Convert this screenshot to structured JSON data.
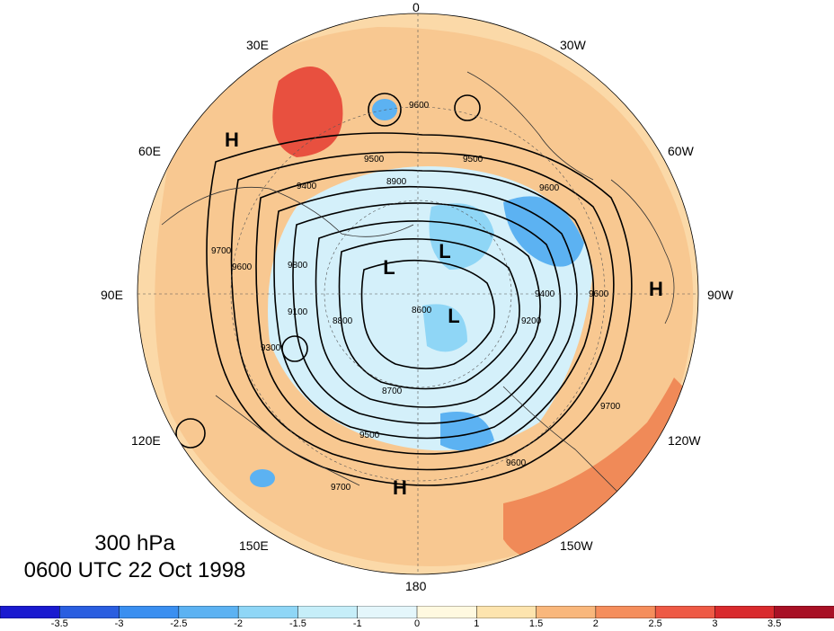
{
  "title": {
    "level": "300 hPa",
    "time": "0600 UTC 22 Oct 1998"
  },
  "longitude_labels": {
    "lon_0": "0",
    "lon_30w": "30W",
    "lon_60w": "60W",
    "lon_90w": "90W",
    "lon_120w": "120W",
    "lon_150w": "150W",
    "lon_180": "180",
    "lon_150e": "150E",
    "lon_120e": "120E",
    "lon_90e": "90E",
    "lon_60e": "60E",
    "lon_30e": "30E"
  },
  "pressure_centers": {
    "h1": "H",
    "h2": "H",
    "h3": "H",
    "l1": "L",
    "l2": "L",
    "l3": "L"
  },
  "contour_labels": [
    "9600",
    "9500",
    "9400",
    "9700",
    "9300",
    "9100",
    "8900",
    "8800",
    "8700",
    "8600",
    "9200",
    "9800"
  ],
  "colorbar": {
    "colors": [
      "#1a1ad0",
      "#2a5ee0",
      "#3a8ff0",
      "#5cb2f2",
      "#8fd6f6",
      "#c6eef9",
      "#e4f6fb",
      "#fff9e0",
      "#fde4ae",
      "#f9b77c",
      "#f58e5c",
      "#ee5a45",
      "#d92a2d",
      "#a81025"
    ],
    "tick_labels": [
      "-3.5",
      "-3",
      "-2.5",
      "-2",
      "-1.5",
      "-1",
      "0",
      "1",
      "1.5",
      "2",
      "2.5",
      "3",
      "3.5"
    ]
  }
}
